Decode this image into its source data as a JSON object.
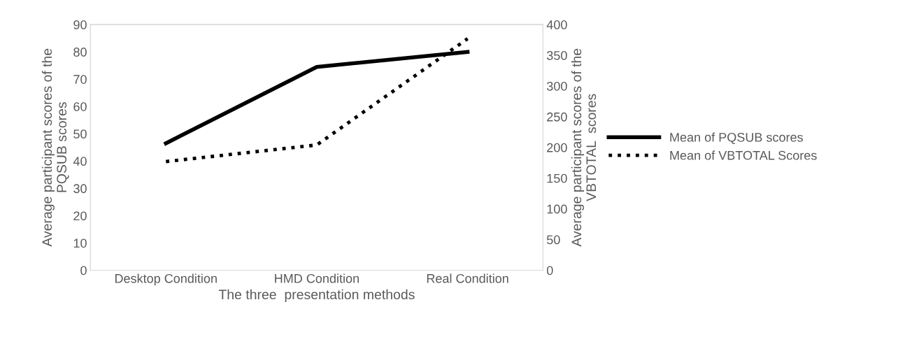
{
  "chart_data": {
    "type": "line",
    "xlabel": "The three  presentation methods",
    "ylabel": "Average participant scores of the\nPQSUB scores",
    "y2label": "Average participant scores of the\nVBTOTAL  scores",
    "categories": [
      "Desktop Condition",
      "HMD Condition",
      "Real Condition"
    ],
    "series": [
      {
        "name": "Mean of PQSUB scores",
        "color": "#000000",
        "line_style": "solid",
        "values": [
          46.5,
          74.5,
          80
        ]
      },
      {
        "name": "Mean of VBTOTAL Scores",
        "color": "#000000",
        "line_style": "dotted",
        "axis": "y2",
        "values": [
          177,
          204,
          377
        ]
      }
    ],
    "ylim": [
      0,
      90
    ],
    "yticks": [
      0,
      10,
      20,
      30,
      40,
      50,
      60,
      70,
      80,
      90
    ],
    "y2lim": [
      0,
      400
    ],
    "y2ticks": [
      0,
      50,
      100,
      150,
      200,
      250,
      300,
      350,
      400
    ],
    "grid": false,
    "legend": "right",
    "marker": "none"
  }
}
